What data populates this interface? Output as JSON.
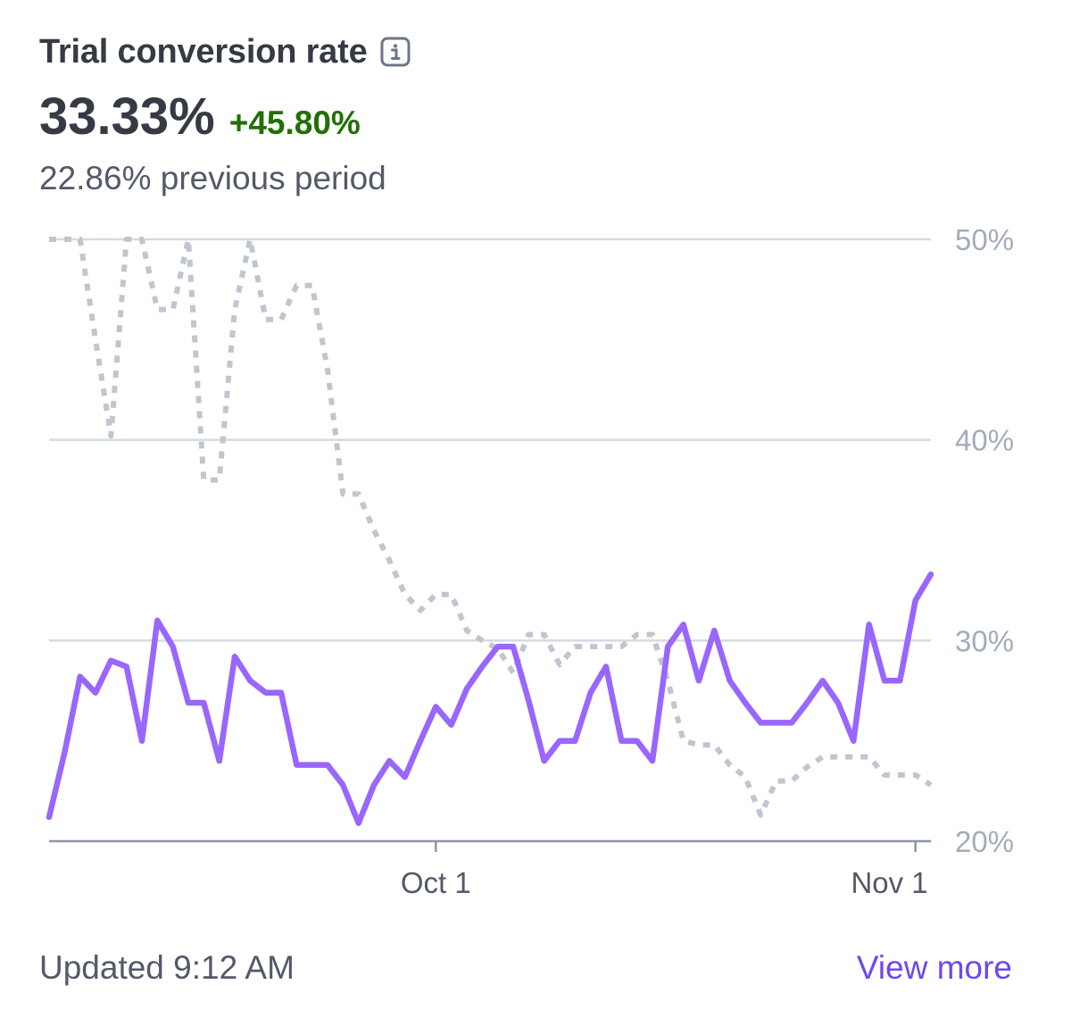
{
  "card": {
    "title": "Trial conversion rate",
    "info_icon": "info-icon",
    "value": "33.33%",
    "change": "+45.80%",
    "previous": "22.86% previous period",
    "updated": "Updated 9:12 AM",
    "view_more": "View more"
  },
  "colors": {
    "current_series": "#9966ff",
    "previous_series": "#c0c6d0",
    "positive_change": "#217005",
    "link": "#6e46f3",
    "gridline": "#d5dbe1",
    "axis": "#8d96a5"
  },
  "chart_data": {
    "type": "line",
    "title": "",
    "xlabel": "",
    "ylabel": "",
    "y_axis_side": "right",
    "ylim": [
      20,
      50
    ],
    "yticks": [
      {
        "value": 20,
        "label": "20%"
      },
      {
        "value": 30,
        "label": "30%"
      },
      {
        "value": 40,
        "label": "40%"
      },
      {
        "value": 50,
        "label": "50%"
      }
    ],
    "x_range": [
      0,
      57
    ],
    "xticks": [
      {
        "value": 25,
        "label": "Oct 1"
      },
      {
        "value": 56,
        "label": "Nov 1"
      }
    ],
    "grid": true,
    "legend": "none",
    "series": [
      {
        "style": "solid",
        "values": [
          21.2,
          24.4,
          28.2,
          27.4,
          29.0,
          28.7,
          25.0,
          31.0,
          29.7,
          26.9,
          26.9,
          24.0,
          29.2,
          28.0,
          27.4,
          27.4,
          23.8,
          23.8,
          23.8,
          22.8,
          20.9,
          22.8,
          24.0,
          23.2,
          25.0,
          26.7,
          25.8,
          27.6,
          28.7,
          29.7,
          29.7,
          27.0,
          24.0,
          25.0,
          25.0,
          27.4,
          28.7,
          25.0,
          25.0,
          24.0,
          29.7,
          30.8,
          28.0,
          30.5,
          28.0,
          26.9,
          25.9,
          25.9,
          25.9,
          26.9,
          28.0,
          26.9,
          25.0,
          30.8,
          28.0,
          28.0,
          32.0,
          33.3
        ]
      },
      {
        "style": "dotted",
        "values": [
          50.0,
          50.0,
          50.0,
          45.0,
          40.2,
          50.0,
          50.0,
          46.5,
          46.5,
          50.0,
          38.0,
          38.0,
          46.5,
          50.0,
          46.0,
          46.0,
          47.7,
          47.7,
          43.5,
          37.3,
          37.3,
          35.5,
          34.0,
          32.3,
          31.5,
          32.3,
          32.3,
          30.5,
          30.0,
          29.6,
          28.4,
          30.3,
          30.3,
          28.8,
          29.7,
          29.7,
          29.7,
          29.7,
          30.3,
          30.3,
          28.0,
          25.0,
          24.8,
          24.8,
          23.8,
          23.2,
          21.3,
          23.0,
          23.0,
          23.7,
          24.2,
          24.2,
          24.2,
          24.2,
          23.3,
          23.3,
          23.3,
          22.8
        ]
      }
    ]
  }
}
